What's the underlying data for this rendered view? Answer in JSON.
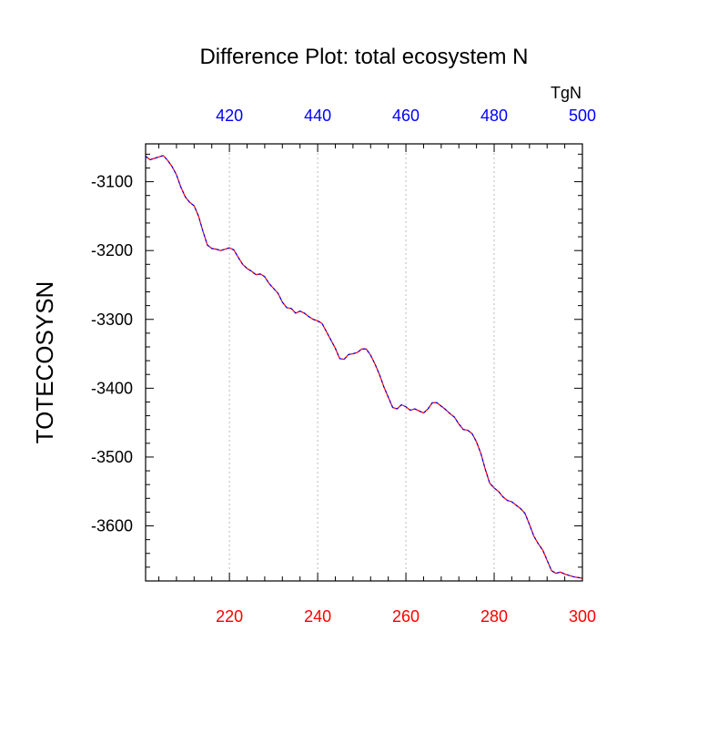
{
  "chart_data": {
    "type": "line",
    "title": "Difference Plot: total ecosystem N",
    "ylabel": "TOTECOSYSN",
    "top_units": "TgN",
    "x_bottom": {
      "range": [
        201,
        300
      ],
      "ticks": [
        220,
        240,
        260,
        280,
        300
      ],
      "tick_labels": [
        "220",
        "240",
        "260",
        "280",
        "300"
      ],
      "color": "#ff0000"
    },
    "x_top": {
      "range": [
        401,
        500
      ],
      "ticks": [
        420,
        440,
        460,
        480,
        500
      ],
      "tick_labels": [
        "420",
        "440",
        "460",
        "480",
        "500"
      ],
      "color": "#0000ff"
    },
    "ylim": [
      -3680,
      -3045
    ],
    "y_ticks": [
      -3100,
      -3200,
      -3300,
      -3400,
      -3500,
      -3600
    ],
    "y_tick_labels": [
      "-3100",
      "-3200",
      "-3300",
      "-3400",
      "-3500",
      "-3600"
    ],
    "grid": "vertical dotted at major x ticks",
    "series": [
      {
        "line_color": "#ff0000",
        "dash_color": "#0000ff",
        "x": [
          201,
          202,
          203,
          204,
          205,
          206,
          207,
          208,
          209,
          210,
          211,
          212,
          213,
          214,
          215,
          216,
          217,
          218,
          219,
          220,
          221,
          222,
          223,
          224,
          225,
          226,
          227,
          228,
          229,
          230,
          231,
          232,
          233,
          234,
          235,
          236,
          237,
          238,
          239,
          240,
          241,
          242,
          243,
          244,
          245,
          246,
          247,
          248,
          249,
          250,
          251,
          252,
          253,
          254,
          255,
          256,
          257,
          258,
          259,
          260,
          261,
          262,
          263,
          264,
          265,
          266,
          267,
          268,
          269,
          270,
          271,
          272,
          273,
          274,
          275,
          276,
          277,
          278,
          279,
          280,
          281,
          282,
          283,
          284,
          285,
          286,
          287,
          288,
          289,
          290,
          291,
          292,
          293,
          294,
          295,
          296,
          297,
          298,
          299,
          300
        ],
        "y": [
          -3063,
          -3068,
          -3066,
          -3064,
          -3062,
          -3069,
          -3078,
          -3090,
          -3108,
          -3122,
          -3130,
          -3135,
          -3150,
          -3172,
          -3192,
          -3197,
          -3198,
          -3200,
          -3198,
          -3196,
          -3199,
          -3210,
          -3220,
          -3226,
          -3230,
          -3235,
          -3234,
          -3238,
          -3248,
          -3255,
          -3262,
          -3275,
          -3283,
          -3284,
          -3291,
          -3288,
          -3291,
          -3296,
          -3300,
          -3302,
          -3306,
          -3318,
          -3330,
          -3342,
          -3357,
          -3358,
          -3351,
          -3350,
          -3348,
          -3343,
          -3343,
          -3352,
          -3365,
          -3380,
          -3398,
          -3413,
          -3428,
          -3430,
          -3424,
          -3427,
          -3432,
          -3430,
          -3433,
          -3436,
          -3430,
          -3421,
          -3421,
          -3426,
          -3431,
          -3437,
          -3442,
          -3452,
          -3460,
          -3461,
          -3466,
          -3478,
          -3495,
          -3518,
          -3538,
          -3545,
          -3550,
          -3558,
          -3563,
          -3565,
          -3570,
          -3575,
          -3582,
          -3598,
          -3615,
          -3626,
          -3635,
          -3650,
          -3665,
          -3669,
          -3667,
          -3670,
          -3672,
          -3674,
          -3675,
          -3676
        ]
      }
    ]
  }
}
